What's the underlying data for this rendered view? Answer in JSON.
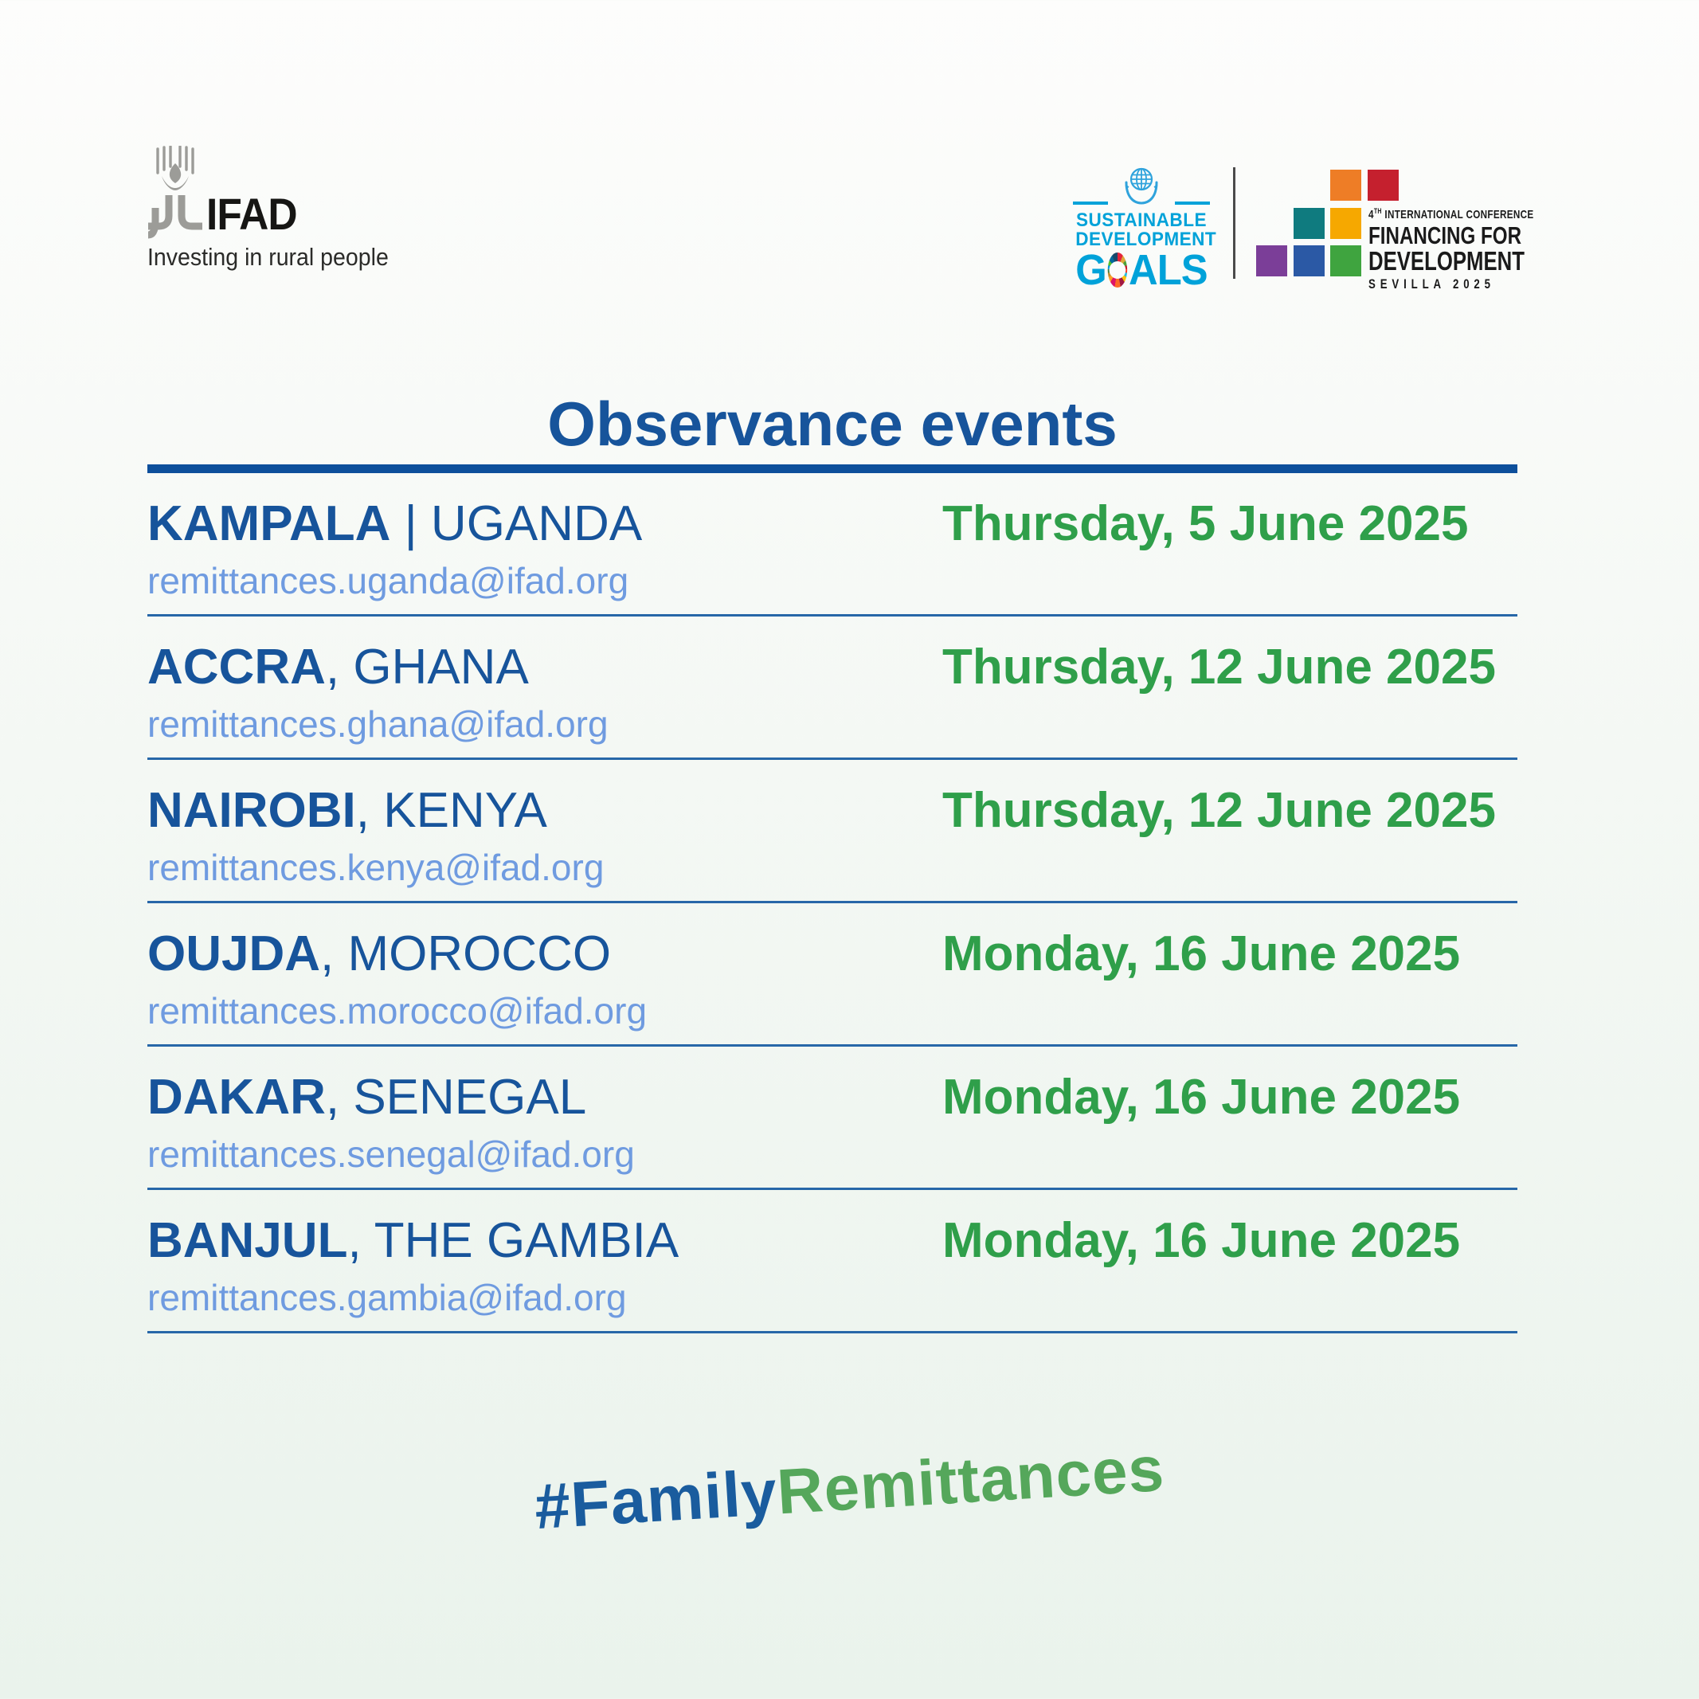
{
  "header": {
    "ifad": {
      "wordmark": "IFAD",
      "tagline": "Investing in rural people"
    },
    "sdg": {
      "line1": "SUSTAINABLE",
      "line2": "DEVELOPMENT",
      "goals_pre": "G",
      "goals_post": "ALS"
    },
    "ffd": {
      "conf_num": "4",
      "conf_sup": "TH",
      "conf_rest": " INTERNATIONAL CONFERENCE",
      "line1": "FINANCING FOR",
      "line2": "DEVELOPMENT",
      "line3": "SEVILLA 2025",
      "squares": [
        {
          "name": "orange",
          "color": "#EE7D26",
          "col": 3,
          "row": 1
        },
        {
          "name": "red",
          "color": "#C5202E",
          "col": 4,
          "row": 1
        },
        {
          "name": "teal",
          "color": "#0F7B7F",
          "col": 2,
          "row": 2
        },
        {
          "name": "yellow",
          "color": "#F6A800",
          "col": 3,
          "row": 2
        },
        {
          "name": "purple",
          "color": "#7B3E98",
          "col": 1,
          "row": 3
        },
        {
          "name": "blue",
          "color": "#2B59A5",
          "col": 2,
          "row": 3
        },
        {
          "name": "green",
          "color": "#3FA43F",
          "col": 3,
          "row": 3
        }
      ]
    }
  },
  "title": "Observance events",
  "events": [
    {
      "city": "KAMPALA",
      "separator": " | ",
      "country": "UGANDA",
      "email": "remittances.uganda@ifad.org",
      "date": "Thursday, 5 June 2025"
    },
    {
      "city": "ACCRA",
      "separator": ", ",
      "country": "GHANA",
      "email": "remittances.ghana@ifad.org",
      "date": "Thursday, 12 June 2025"
    },
    {
      "city": "NAIROBI",
      "separator": ", ",
      "country": "KENYA",
      "email": "remittances.kenya@ifad.org",
      "date": "Thursday, 12 June 2025"
    },
    {
      "city": "OUJDA",
      "separator": ", ",
      "country": "MOROCCO",
      "email": "remittances.morocco@ifad.org",
      "date": "Monday, 16 June 2025"
    },
    {
      "city": "DAKAR",
      "separator": ", ",
      "country": "SENEGAL",
      "email": "remittances.senegal@ifad.org",
      "date": "Monday, 16 June 2025"
    },
    {
      "city": "BANJUL",
      "separator": ", ",
      "country": "THE GAMBIA",
      "email": "remittances.gambia@ifad.org",
      "date": "Monday, 16 June 2025"
    }
  ],
  "hashtag": {
    "part1": "#Family",
    "part2": "Remittances"
  },
  "colors": {
    "primary_blue": "#17549B",
    "rule_blue": "#0D4F9B",
    "separator_blue": "#2767A8",
    "email_link_blue": "#6F9BE0",
    "date_green": "#2F9F4A",
    "hashtag_blue": "#1A5C9E",
    "hashtag_green": "#55A75B",
    "sdg_cyan": "#00A2D9",
    "ifad_gray": "#9C9C98",
    "background_top": "#FDFDFC",
    "background_bottom": "#EAF3EC"
  }
}
